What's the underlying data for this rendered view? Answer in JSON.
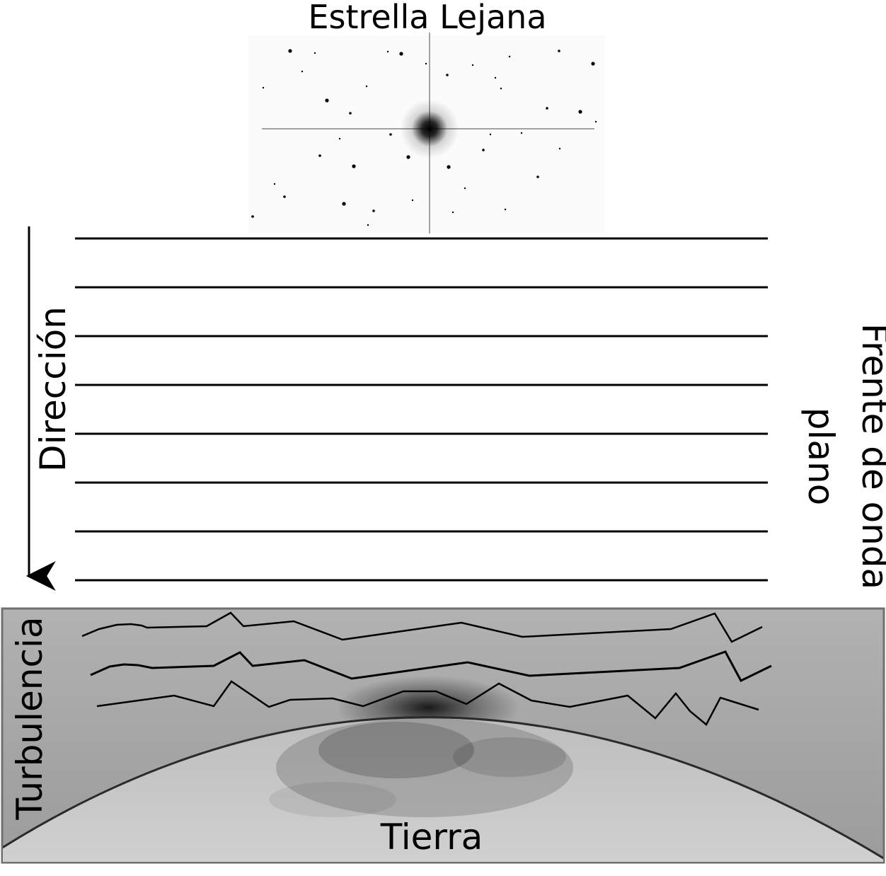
{
  "labels": {
    "star": "Estrella Lejana",
    "direction": "Dirección",
    "wavefront_line1": "Frente de onda",
    "wavefront_line2": "plano",
    "turbulence": "Turbulencia",
    "earth": "Tierra"
  },
  "colors": {
    "ink": "#000000",
    "panel_bg": "#a9a9a9",
    "panel_border": "#707070",
    "earth_fill": "#c4c4c4"
  },
  "wavefront_line_count": 8,
  "distorted_wavefront_count": 3
}
